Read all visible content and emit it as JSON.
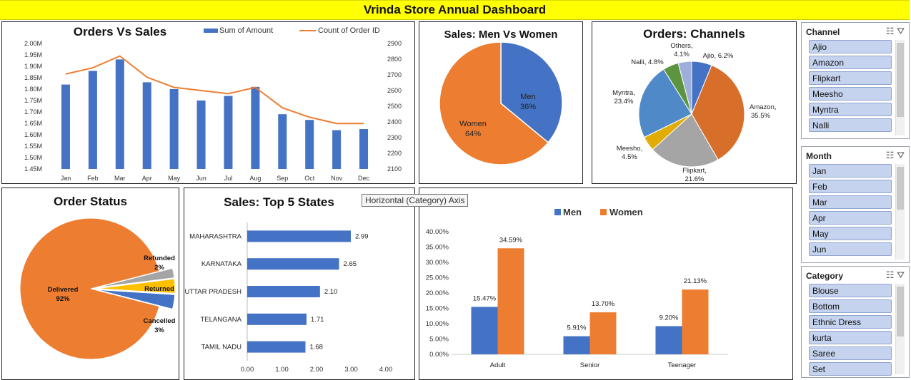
{
  "dashboard_title": "Vrinda Store Annual Dashboard",
  "tooltip": "Horizontal (Category) Axis",
  "chart_data": [
    {
      "id": "orders_vs_sales",
      "type": "bar",
      "title": "Orders Vs Sales",
      "categories": [
        "Jan",
        "Feb",
        "Mar",
        "Apr",
        "May",
        "Jun",
        "Jul",
        "Aug",
        "Sep",
        "Oct",
        "Nov",
        "Dec"
      ],
      "series": [
        {
          "name": "Sum of Amount",
          "kind": "bar",
          "axis": "left",
          "color": "#4472c4",
          "values": [
            1.82,
            1.88,
            1.93,
            1.83,
            1.8,
            1.75,
            1.77,
            1.81,
            1.69,
            1.665,
            1.62,
            1.625
          ]
        },
        {
          "name": "Count of Order ID",
          "kind": "line",
          "axis": "right",
          "color": "#ed7d31",
          "values": [
            2705,
            2745,
            2820,
            2685,
            2620,
            2600,
            2580,
            2620,
            2490,
            2430,
            2390,
            2390
          ]
        }
      ],
      "ylim_left": [
        1.45,
        2.0
      ],
      "yticks_left": [
        "2.00M",
        "1.95M",
        "1.90M",
        "1.85M",
        "1.80M",
        "1.75M",
        "1.70M",
        "1.65M",
        "1.60M",
        "1.55M",
        "1.50M",
        "1.45M"
      ],
      "ylim_right": [
        2100,
        2900
      ],
      "yticks_right": [
        "2900",
        "2800",
        "2700",
        "2600",
        "2500",
        "2400",
        "2300",
        "2200",
        "2100"
      ]
    },
    {
      "id": "men_vs_women",
      "type": "pie",
      "title": "Sales: Men Vs Women",
      "slices": [
        {
          "label": "Men",
          "pct": "36%",
          "value": 36,
          "color": "#4472c4"
        },
        {
          "label": "Women",
          "pct": "64%",
          "value": 64,
          "color": "#ed7d31"
        }
      ]
    },
    {
      "id": "channels",
      "type": "pie",
      "title": "Orders: Channels",
      "slices": [
        {
          "label": "Ajio, 6.2%",
          "value": 6.2,
          "color": "#4472c4"
        },
        {
          "label": "Amazon, 35.5%",
          "value": 35.5,
          "color": "#d76e2a"
        },
        {
          "label": "Flipkart, 21.6%",
          "value": 21.6,
          "color": "#a5a5a5"
        },
        {
          "label": "Meesho, 4.5%",
          "value": 4.5,
          "color": "#e2ac06"
        },
        {
          "label": "Myntra, 23.4%",
          "value": 23.4,
          "color": "#4f89c8"
        },
        {
          "label": "Nalli, 4.8%",
          "value": 4.8,
          "color": "#5d9440"
        },
        {
          "label": "Others, 4.1%",
          "value": 4.1,
          "color": "#9eaedb"
        }
      ]
    },
    {
      "id": "order_status",
      "type": "pie",
      "title": "Order Status",
      "slices": [
        {
          "label": "Delivered",
          "pct": "92%",
          "value": 92,
          "color": "#ed7d31"
        },
        {
          "label": "Refunded",
          "pct": "2%",
          "value": 2,
          "color": "#a5a5a5"
        },
        {
          "label": "Returned",
          "pct": "3%",
          "value": 3,
          "color": "#ffc000"
        },
        {
          "label": "Cancelled",
          "pct": "3%",
          "value": 3,
          "color": "#4472c4"
        }
      ]
    },
    {
      "id": "top_states",
      "type": "bar",
      "orientation": "horizontal",
      "title": "Sales: Top 5 States",
      "categories": [
        "MAHARASHTRA",
        "KARNATAKA",
        "UTTAR PRADESH",
        "TELANGANA",
        "TAMIL NADU"
      ],
      "values": [
        2.99,
        2.65,
        2.1,
        1.71,
        1.68
      ],
      "value_labels": [
        "2.99",
        "2.65",
        "2.10",
        "1.71",
        "1.68"
      ],
      "xlim": [
        0,
        4
      ],
      "xticks": [
        "0.00",
        "1.00",
        "2.00",
        "3.00",
        "4.00"
      ],
      "color": "#4472c4"
    },
    {
      "id": "age_gender",
      "type": "bar",
      "title": "",
      "categories": [
        "Adult",
        "Senior",
        "Teenager"
      ],
      "series": [
        {
          "name": "Men",
          "color": "#4472c4",
          "values": [
            15.47,
            5.91,
            9.2
          ],
          "labels": [
            "15.47%",
            "5.91%",
            "9.20%"
          ]
        },
        {
          "name": "Women",
          "color": "#ed7d31",
          "values": [
            34.59,
            13.7,
            21.13
          ],
          "labels": [
            "34.59%",
            "13.70%",
            "21.13%"
          ]
        }
      ],
      "ylim": [
        0,
        40
      ],
      "yticks": [
        "40.00%",
        "35.00%",
        "30.00%",
        "25.00%",
        "20.00%",
        "15.00%",
        "10.00%",
        "5.00%",
        "0.00%"
      ]
    }
  ],
  "slicers": {
    "channel": {
      "title": "Channel",
      "items": [
        "Ajio",
        "Amazon",
        "Flipkart",
        "Meesho",
        "Myntra",
        "Nalli"
      ]
    },
    "month": {
      "title": "Month",
      "items": [
        "Jan",
        "Feb",
        "Mar",
        "Apr",
        "May",
        "Jun"
      ]
    },
    "category": {
      "title": "Category",
      "items": [
        "Blouse",
        "Bottom",
        "Ethnic Dress",
        "kurta",
        "Saree",
        "Set"
      ]
    }
  }
}
